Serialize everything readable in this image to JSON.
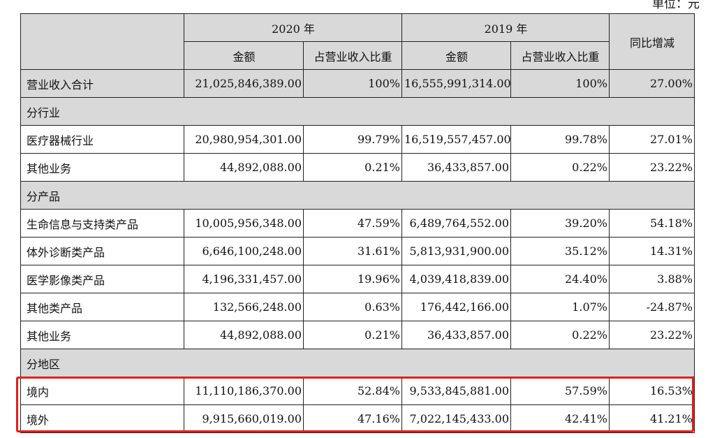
{
  "unit_label": "单位：元",
  "header": {
    "year_2020": "2020 年",
    "year_2019": "2019 年",
    "yoy": "同比增减",
    "amount": "金额",
    "ratio": "占营业收入比重"
  },
  "total": {
    "label": "营业收入合计",
    "v2020": "21,025,846,389.00",
    "r2020": "100%",
    "v2019": "16,555,991,314.00",
    "r2019": "100%",
    "yoy": "27.00%"
  },
  "sections": {
    "industry": {
      "title": "分行业",
      "rows": [
        {
          "label": "医疗器械行业",
          "v2020": "20,980,954,301.00",
          "r2020": "99.79%",
          "v2019": "16,519,557,457.00",
          "r2019": "99.78%",
          "yoy": "27.01%"
        },
        {
          "label": "其他业务",
          "v2020": "44,892,088.00",
          "r2020": "0.21%",
          "v2019": "36,433,857.00",
          "r2019": "0.22%",
          "yoy": "23.22%"
        }
      ]
    },
    "product": {
      "title": "分产品",
      "rows": [
        {
          "label": "生命信息与支持类产品",
          "v2020": "10,005,956,348.00",
          "r2020": "47.59%",
          "v2019": "6,489,764,552.00",
          "r2019": "39.20%",
          "yoy": "54.18%"
        },
        {
          "label": "体外诊断类产品",
          "v2020": "6,646,100,248.00",
          "r2020": "31.61%",
          "v2019": "5,813,931,900.00",
          "r2019": "35.12%",
          "yoy": "14.31%"
        },
        {
          "label": "医学影像类产品",
          "v2020": "4,196,331,457.00",
          "r2020": "19.96%",
          "v2019": "4,039,418,839.00",
          "r2019": "24.40%",
          "yoy": "3.88%"
        },
        {
          "label": "其他类产品",
          "v2020": "132,566,248.00",
          "r2020": "0.63%",
          "v2019": "176,442,166.00",
          "r2019": "1.07%",
          "yoy": "-24.87%"
        },
        {
          "label": "其他业务",
          "v2020": "44,892,088.00",
          "r2020": "0.21%",
          "v2019": "36,433,857.00",
          "r2019": "0.22%",
          "yoy": "23.22%"
        }
      ]
    },
    "region": {
      "title": "分地区",
      "rows": [
        {
          "label": "境内",
          "v2020": "11,110,186,370.00",
          "r2020": "52.84%",
          "v2019": "9,533,845,881.00",
          "r2019": "57.59%",
          "yoy": "16.53%"
        },
        {
          "label": "境外",
          "v2020": "9,915,660,019.00",
          "r2020": "47.16%",
          "v2019": "7,022,145,433.00",
          "r2019": "42.41%",
          "yoy": "41.21%"
        }
      ]
    }
  },
  "colors": {
    "header_bg": "#d9d9d9",
    "highlight": "#e0201b"
  }
}
